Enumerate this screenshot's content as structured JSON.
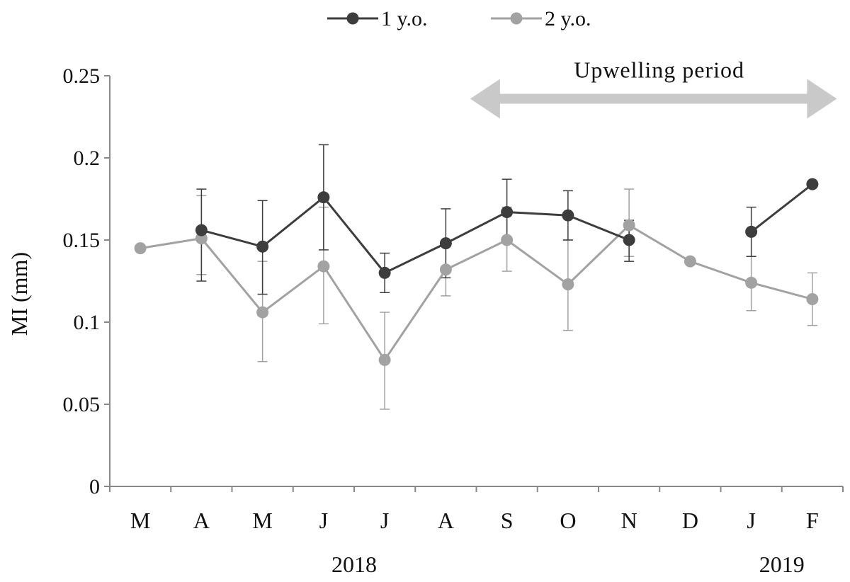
{
  "chart_data": {
    "type": "line",
    "categories": [
      "M",
      "A",
      "M",
      "J",
      "J",
      "A",
      "S",
      "O",
      "N",
      "D",
      "J",
      "F"
    ],
    "year_labels": [
      {
        "label": "2018",
        "category_index": 3.5
      },
      {
        "label": "2019",
        "category_index": 10.5
      }
    ],
    "ylabel": "MI (mm)",
    "xlabel": "",
    "ylim": [
      0,
      0.25
    ],
    "yticks": [
      0,
      0.05,
      0.1,
      0.15,
      0.2,
      0.25
    ],
    "ytick_labels": [
      "0",
      "0.05",
      "0.1",
      "0.15",
      "0.2",
      "0.25"
    ],
    "grid": false,
    "legend_position": "top-center",
    "annotation": {
      "text": "Upwelling period",
      "type": "double-arrow",
      "from_category_index": 5.4,
      "to_category_index": 11.4,
      "y": 0.236,
      "color": "#c9c9c9"
    },
    "series": [
      {
        "name": "1 y.o.",
        "color": "#3d3d3d",
        "values": [
          null,
          0.156,
          0.146,
          0.176,
          0.13,
          0.148,
          0.167,
          0.165,
          0.15,
          null,
          0.155,
          0.184
        ],
        "err_low": [
          null,
          0.125,
          0.117,
          0.144,
          0.118,
          0.127,
          0.149,
          0.15,
          0.137,
          null,
          0.14,
          null
        ],
        "err_high": [
          null,
          0.181,
          0.174,
          0.208,
          0.142,
          0.169,
          0.187,
          0.18,
          0.162,
          null,
          0.17,
          null
        ]
      },
      {
        "name": "2 y.o.",
        "color": "#a2a2a2",
        "values": [
          0.145,
          0.151,
          0.106,
          0.134,
          0.077,
          0.132,
          0.15,
          0.123,
          0.159,
          0.137,
          0.124,
          0.114
        ],
        "err_low": [
          null,
          0.129,
          0.076,
          0.099,
          0.047,
          0.116,
          0.131,
          0.095,
          0.14,
          null,
          0.107,
          0.098
        ],
        "err_high": [
          null,
          0.177,
          0.137,
          0.17,
          0.106,
          0.148,
          0.17,
          0.15,
          0.181,
          null,
          0.14,
          0.13
        ]
      }
    ]
  }
}
